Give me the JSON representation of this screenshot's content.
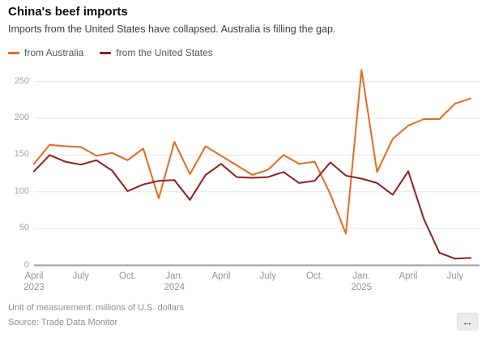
{
  "header": {
    "title": "China's beef imports",
    "subtitle": "Imports from the United States have collapsed. Australia is filling the gap."
  },
  "chart_data": {
    "type": "line",
    "title": "China's beef imports",
    "unit": "millions of U.S. dollars",
    "months": [
      "Apr 2023",
      "May 2023",
      "Jun 2023",
      "Jul 2023",
      "Aug 2023",
      "Sep 2023",
      "Oct 2023",
      "Nov 2023",
      "Dec 2023",
      "Jan 2024",
      "Feb 2024",
      "Mar 2024",
      "Apr 2024",
      "May 2024",
      "Jun 2024",
      "Jul 2024",
      "Aug 2024",
      "Sep 2024",
      "Oct 2024",
      "Nov 2024",
      "Dec 2024",
      "Jan 2025",
      "Feb 2025",
      "Mar 2025",
      "Apr 2025",
      "May 2025",
      "Jun 2025",
      "Jul 2025",
      "Aug 2025"
    ],
    "series": [
      {
        "name": "from Australia",
        "color": "#e8691e",
        "values": [
          138,
          164,
          162,
          161,
          149,
          153,
          143,
          159,
          91,
          168,
          124,
          162,
          149,
          136,
          123,
          130,
          150,
          138,
          141,
          97,
          43,
          266,
          127,
          172,
          190,
          199,
          199,
          220,
          227
        ]
      },
      {
        "name": "from the United States",
        "color": "#8f1f1f",
        "values": [
          128,
          150,
          141,
          137,
          143,
          129,
          101,
          110,
          115,
          116,
          89,
          123,
          138,
          120,
          119,
          120,
          127,
          112,
          115,
          140,
          122,
          118,
          112,
          96,
          128,
          63,
          17,
          9,
          10
        ]
      }
    ],
    "ylim": [
      0,
      270
    ],
    "y_ticks": [
      0,
      50,
      100,
      150,
      200,
      250
    ],
    "x_ticks": [
      {
        "index": 0,
        "label": "April",
        "sublabel": "2023"
      },
      {
        "index": 3,
        "label": "July"
      },
      {
        "index": 6,
        "label": "Oct."
      },
      {
        "index": 9,
        "label": "Jan.",
        "sublabel": "2024"
      },
      {
        "index": 12,
        "label": "April"
      },
      {
        "index": 15,
        "label": "July"
      },
      {
        "index": 18,
        "label": "Oct."
      },
      {
        "index": 21,
        "label": "Jan.",
        "sublabel": "2025"
      },
      {
        "index": 24,
        "label": "April"
      },
      {
        "index": 27,
        "label": "July"
      }
    ],
    "grid": true,
    "legend_position": "top-left"
  },
  "footer": {
    "unit": "Unit of measurement: millions of U.S. dollars",
    "source": "Source: Trade Data Monitor"
  },
  "icons": {
    "resize": "↔"
  },
  "colors": {
    "gridline": "#e3e3e3",
    "zero_line": "#9b9b9b",
    "axis_text": "#9a9a9a"
  }
}
